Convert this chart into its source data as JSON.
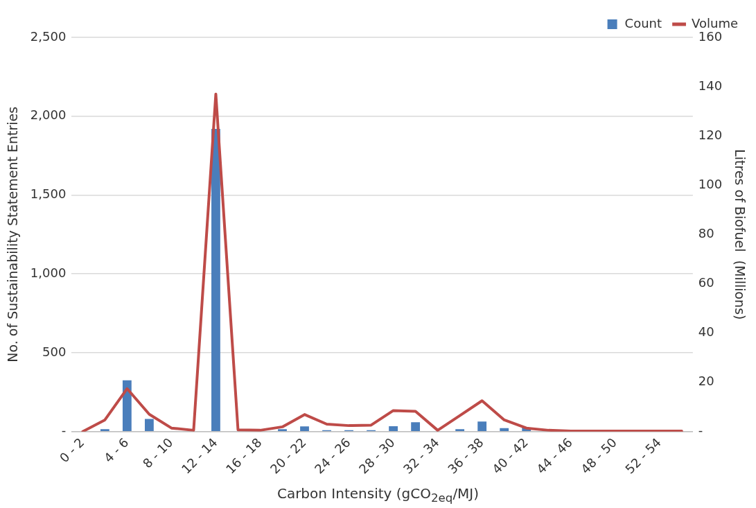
{
  "chart_data": {
    "type": "bar",
    "xlabel": "Carbon Intensity (gCO$_{2eq}$/MJ)",
    "ylabel": "No. of Sustainability Statement Entries",
    "y2label": "Litres of Biofuel  (Millions)",
    "categories": [
      "0 - 2",
      null,
      "4 - 6",
      null,
      "8 - 10",
      null,
      "12 - 14",
      null,
      "16 - 18",
      null,
      "20 - 22",
      null,
      "24 - 26",
      null,
      "28 - 30",
      null,
      "32 - 34",
      null,
      "36 - 38",
      null,
      "40 - 42",
      null,
      "44 - 46",
      null,
      "48 - 50",
      null,
      "52 - 54",
      null
    ],
    "series": [
      {
        "name": "Count",
        "color": "#4a7ebb",
        "values": [
          0,
          15,
          325,
          80,
          0,
          0,
          1920,
          0,
          0,
          15,
          32,
          8,
          8,
          8,
          34,
          59,
          0,
          15,
          63,
          21,
          25,
          0,
          0,
          0,
          0,
          0,
          0,
          0
        ]
      },
      {
        "name": "Volume",
        "type": "line",
        "axis": "y2",
        "color": "#be4b48",
        "values": [
          0,
          4.7,
          17.4,
          7,
          1.4,
          0.5,
          137,
          0.7,
          0.5,
          1.9,
          6.9,
          3,
          2.4,
          2.6,
          8.5,
          8.2,
          0.5,
          6.5,
          12.5,
          4.7,
          1.4,
          0.5,
          0.2,
          0.2,
          0.2,
          0.2,
          0.2,
          0.2
        ]
      }
    ],
    "ylim": [
      0,
      2500
    ],
    "yticks": [
      {
        "value": 0,
        "label": "-"
      },
      {
        "value": 500,
        "label": "500"
      },
      {
        "value": 1000,
        "label": "1,000"
      },
      {
        "value": 1500,
        "label": "1,500"
      },
      {
        "value": 2000,
        "label": "2,000"
      },
      {
        "value": 2500,
        "label": "2,500"
      }
    ],
    "y2lim": [
      0,
      160
    ],
    "y2ticks": [
      {
        "value": 0,
        "label": "-"
      },
      20,
      40,
      60,
      80,
      100,
      120,
      140,
      160
    ],
    "grid": "y",
    "legend": "top right",
    "marker": "none"
  }
}
